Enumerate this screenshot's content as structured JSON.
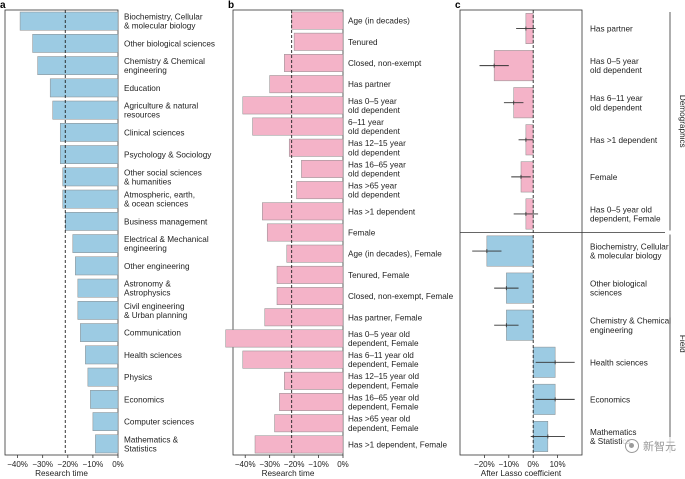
{
  "chart_data": [
    {
      "panel": "a",
      "type": "bar",
      "orientation": "horizontal",
      "color": "#9ccbe3",
      "xlabel": "Research time",
      "xlim": [
        -45,
        0
      ],
      "xticks": [
        -40,
        -30,
        -20,
        -10,
        0
      ],
      "xtick_labels": [
        "−40%",
        "−30%",
        "−20%",
        "−10%",
        "0%"
      ],
      "reference_line": -21,
      "categories": [
        "Biochemistry, Cellular & molecular biology",
        "Other biological sciences",
        "Chemistry & Chemical engineering",
        "Education",
        "Agriculture & natural resources",
        "Clinical sciences",
        "Psychology & Sociology",
        "Other social sciences & humanities",
        "Atmospheric, earth, & ocean sciences",
        "Business management",
        "Electrical & Mechanical engineering",
        "Other engineering",
        "Astronomy & Astrophysics",
        "Civil engineering & Urban planning",
        "Communication",
        "Health sciences",
        "Physics",
        "Economics",
        "Computer sciences",
        "Mathematics & Statistics"
      ],
      "label_lines": [
        [
          "Biochemistry, Cellular",
          "& molecular biology"
        ],
        [
          "Other biological sciences"
        ],
        [
          "Chemistry & Chemical",
          "engineering"
        ],
        [
          "Education"
        ],
        [
          "Agriculture & natural",
          "resources"
        ],
        [
          "Clinical sciences"
        ],
        [
          "Psychology & Sociology"
        ],
        [
          "Other social sciences",
          "& humanities"
        ],
        [
          "Atmospheric, earth,",
          "& ocean sciences"
        ],
        [
          "Business management"
        ],
        [
          "Electrical & Mechanical",
          "engineering"
        ],
        [
          "Other engineering"
        ],
        [
          "Astronomy &",
          "Astrophysics"
        ],
        [
          "Civil engineering",
          "& Urban planning"
        ],
        [
          "Communication"
        ],
        [
          "Health sciences"
        ],
        [
          "Physics"
        ],
        [
          "Economics"
        ],
        [
          "Computer sciences"
        ],
        [
          "Mathematics &",
          "Statistics"
        ]
      ],
      "values": [
        -39,
        -34,
        -32,
        -27,
        -26,
        -23,
        -23,
        -22,
        -22,
        -21,
        -18,
        -17,
        -16,
        -16,
        -15,
        -13,
        -12,
        -11,
        -10,
        -9
      ]
    },
    {
      "panel": "b",
      "type": "bar",
      "orientation": "horizontal",
      "color": "#f4b3c8",
      "xlabel": "Research time",
      "xlim": [
        -45,
        0
      ],
      "xticks": [
        -40,
        -30,
        -20,
        -10,
        0
      ],
      "xtick_labels": [
        "−40%",
        "−30%",
        "−20%",
        "−10%",
        "0%"
      ],
      "reference_line": -21,
      "categories": [
        "Age (in decades)",
        "Tenured",
        "Closed, non-exempt",
        "Has partner",
        "Has 0–5 year old dependent",
        "6–11 year old dependent",
        "Has 12–15 year old dependent",
        "Has 16–65 year old dependent",
        "Has >65 year old dependent",
        "Has >1 dependent",
        "Female",
        "Age (in decades), Female",
        "Tenured, Female",
        "Closed, non-exempt, Female",
        "Has partner, Female",
        "Has 0–5 year old dependent, Female",
        "Has 6–11 year old dependent, Female",
        "Has 12–15 year old dependent, Female",
        "Has 16–65 year old dependent, Female",
        "Has >65 year old dependent, Female",
        "Has >1 dependent, Female"
      ],
      "label_lines": [
        [
          "Age (in decades)"
        ],
        [
          "Tenured"
        ],
        [
          "Closed, non-exempt"
        ],
        [
          "Has partner"
        ],
        [
          "Has 0–5 year",
          "old dependent"
        ],
        [
          "6–11 year",
          "old dependent"
        ],
        [
          "Has 12–15 year",
          "old dependent"
        ],
        [
          "Has 16–65 year",
          "old dependent"
        ],
        [
          "Has >65 year",
          "old dependent"
        ],
        [
          "Has >1 dependent"
        ],
        [
          "Female"
        ],
        [
          "Age (in decades), Female"
        ],
        [
          "Tenured, Female"
        ],
        [
          "Closed, non-exempt, Female"
        ],
        [
          "Has partner, Female"
        ],
        [
          "Has 0–5 year old",
          "dependent, Female"
        ],
        [
          "Has 6–11 year old",
          "dependent, Female"
        ],
        [
          "Has 12–15 year old",
          "dependent, Female"
        ],
        [
          "Has 16–65 year old",
          "dependent, Female"
        ],
        [
          "Has >65 year old",
          "dependent, Female"
        ],
        [
          "Has >1 dependent, Female"
        ]
      ],
      "values": [
        -21,
        -20,
        -24,
        -30,
        -41,
        -37,
        -22,
        -17,
        -19,
        -33,
        -31,
        -23,
        -27,
        -27,
        -32,
        -48,
        -41,
        -24,
        -26,
        -28,
        -36
      ]
    },
    {
      "panel": "c",
      "type": "bar",
      "orientation": "horizontal",
      "color_demographics": "#f4b3c8",
      "color_field": "#9ccbe3",
      "xlabel": "After Lasso coefficient",
      "xlim": [
        -30,
        20
      ],
      "xticks": [
        -20,
        -10,
        0,
        10
      ],
      "xtick_labels": [
        "−20%",
        "−10%",
        "0%",
        "10%"
      ],
      "reference_line": 0,
      "groups": [
        "Demographics",
        "Field"
      ],
      "categories": [
        "Has partner",
        "Has 0–5 year old dependent",
        "Has 6–11 year old dependent",
        "Has >1 dependent",
        "Female",
        "Has 0–5 year old dependent, Female",
        "Biochemistry, Cellular & molecular biology",
        "Other biological sciences",
        "Chemistry & Chemical engineering",
        "Health sciences",
        "Economics",
        "Mathematics & Statistics"
      ],
      "label_lines": [
        [
          "Has partner"
        ],
        [
          "Has 0–5 year",
          "old dependent"
        ],
        [
          "Has 6–11 year",
          "old dependent"
        ],
        [
          "Has >1 dependent"
        ],
        [
          "Female"
        ],
        [
          "Has 0–5 year old",
          "dependent, Female"
        ],
        [
          "Biochemistry, Cellular",
          "& molecular biology"
        ],
        [
          "Other biological",
          "sciences"
        ],
        [
          "Chemistry & Chemical",
          "engineering"
        ],
        [
          "Health sciences"
        ],
        [
          "Economics"
        ],
        [
          "Mathematics",
          "& Statistics"
        ]
      ],
      "group_of": [
        "Demographics",
        "Demographics",
        "Demographics",
        "Demographics",
        "Demographics",
        "Demographics",
        "Field",
        "Field",
        "Field",
        "Field",
        "Field",
        "Field"
      ],
      "values": [
        -3,
        -16,
        -8,
        -3,
        -5,
        -3,
        -19,
        -11,
        -11,
        9,
        9,
        6
      ],
      "ci_low": [
        -7,
        -22,
        -12,
        -6,
        -9,
        -8,
        -25,
        -16,
        -16,
        1,
        1,
        -1
      ],
      "ci_high": [
        1,
        -10,
        -4,
        0,
        -1,
        2,
        -13,
        -6,
        -6,
        17,
        17,
        13
      ]
    }
  ],
  "watermark": "新智元"
}
